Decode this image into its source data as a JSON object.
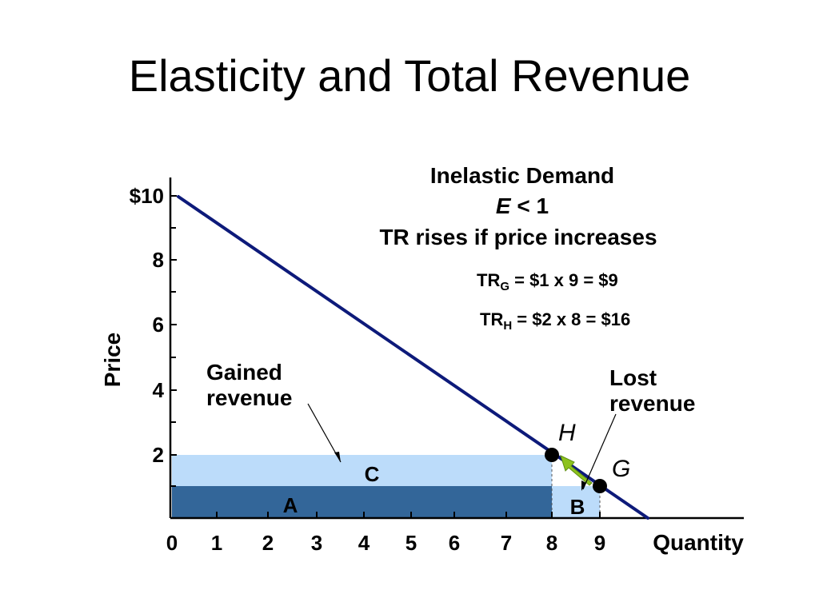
{
  "slide": {
    "title": "Elasticity and Total Revenue"
  },
  "chart_data": {
    "type": "line",
    "title": "Inelastic Demand",
    "annotations": {
      "elasticity_var": "E",
      "elasticity_rest": " < 1",
      "rule": "TR rises if price increases",
      "tr_g": {
        "prefix": "TR",
        "sub": "G",
        "rest": " = $1 x 9 = $9"
      },
      "tr_h": {
        "prefix": "TR",
        "sub": "H",
        "rest": " = $2 x 8 = $16"
      },
      "gained_line1": "Gained",
      "gained_line2": "revenue",
      "lost_line1": "Lost",
      "lost_line2": "revenue"
    },
    "xlabel": "Quantity",
    "ylabel": "Price",
    "xlim": [
      0,
      10
    ],
    "ylim": [
      0,
      10
    ],
    "x_ticks": [
      {
        "value": 0,
        "label": "0"
      },
      {
        "value": 1,
        "label": "1"
      },
      {
        "value": 2,
        "label": "2"
      },
      {
        "value": 3,
        "label": "3"
      },
      {
        "value": 4,
        "label": "4"
      },
      {
        "value": 5,
        "label": "5"
      },
      {
        "value": 6,
        "label": "6"
      },
      {
        "value": 7,
        "label": "7"
      },
      {
        "value": 8,
        "label": "8"
      },
      {
        "value": 9,
        "label": "9"
      }
    ],
    "y_ticks": [
      {
        "value": 2,
        "label": "2"
      },
      {
        "value": 4,
        "label": "4"
      },
      {
        "value": 6,
        "label": "6"
      },
      {
        "value": 8,
        "label": "8"
      },
      {
        "value": 10,
        "label": "$10"
      }
    ],
    "demand_curve": {
      "points": [
        [
          0.15,
          9.9
        ],
        [
          9.8,
          0
        ]
      ],
      "color": "#0d1a7a"
    },
    "regions": [
      {
        "label": "A",
        "x": [
          0,
          8
        ],
        "y": [
          0,
          1
        ],
        "color": "#336699"
      },
      {
        "label": "C",
        "x": [
          0,
          8
        ],
        "y": [
          1,
          2
        ],
        "color": "#bcdcfa"
      },
      {
        "label": "B",
        "x": [
          8,
          9
        ],
        "y": [
          0,
          1
        ],
        "color": "#bcdcfa"
      }
    ],
    "points": [
      {
        "label": "H",
        "x": 8,
        "y": 2
      },
      {
        "label": "G",
        "x": 9,
        "y": 1
      }
    ],
    "arrow_color": "#8dc21f"
  }
}
